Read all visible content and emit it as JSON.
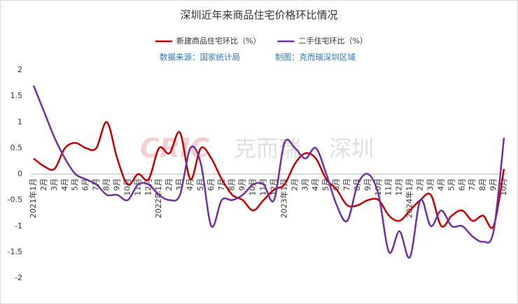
{
  "chart_data": {
    "type": "line",
    "title": "深圳近年来商品住宅价格环比情况",
    "source": "数据来源：国家统计局",
    "credit": "制图：克而瑞深圳区域",
    "watermark": [
      "CRIC",
      "克而瑞",
      "深圳"
    ],
    "categories": [
      "2021年1月",
      "2月",
      "3月",
      "4月",
      "5月",
      "6月",
      "7月",
      "8月",
      "9月",
      "10月",
      "11月",
      "12月",
      "2022年1月",
      "2月",
      "3月",
      "4月",
      "5月",
      "6月",
      "7月",
      "8月",
      "9月",
      "10月",
      "11月",
      "12月",
      "2023年1月",
      "2月",
      "3月",
      "4月",
      "5月",
      "6月",
      "7月",
      "8月",
      "9月",
      "10月",
      "11月",
      "12月",
      "2024年1月",
      "2月",
      "3月",
      "4月",
      "5月",
      "6月",
      "7月",
      "8月",
      "9月",
      "10月"
    ],
    "series": [
      {
        "name": "新建商品住宅环比（%）",
        "color": "#c00000",
        "values": [
          0.3,
          0.15,
          0.1,
          0.5,
          0.6,
          0.5,
          0.5,
          1.0,
          0.3,
          -0.2,
          0,
          -0.1,
          0.5,
          0.4,
          0.8,
          -0.1,
          0.5,
          0.3,
          -0.1,
          -0.4,
          -0.5,
          -0.7,
          -0.5,
          -0.3,
          -0.2,
          0.2,
          0.4,
          0.3,
          -0.1,
          -0.3,
          -0.6,
          -0.6,
          -0.5,
          -0.5,
          -0.8,
          -0.9,
          -0.7,
          -0.5,
          -0.4,
          -1.0,
          -0.8,
          -0.7,
          -0.9,
          -0.8,
          -1.0,
          0.1
        ]
      },
      {
        "name": "二手住宅环比（%）",
        "color": "#7030a0",
        "values": [
          1.7,
          1.2,
          0.7,
          0.3,
          0,
          -0.1,
          -0.2,
          -0.4,
          -0.4,
          -0.5,
          -0.2,
          -0.2,
          -0.4,
          -0.5,
          -0.4,
          0.5,
          0.2,
          -1.0,
          -0.5,
          -0.5,
          -0.4,
          -0.2,
          -0.2,
          -0.5,
          0.6,
          0.5,
          0.3,
          0.5,
          0,
          -0.6,
          -0.9,
          -0.2,
          0,
          -0.4,
          -1.5,
          -1.1,
          -1.6,
          -0.5,
          -1.0,
          -0.7,
          -1.0,
          -1.0,
          -1.2,
          -1.3,
          -1.1,
          0.7
        ]
      }
    ],
    "ylim": [
      -2,
      2
    ],
    "yticks": [
      2,
      1.5,
      1,
      0.5,
      0,
      -0.5,
      -1,
      -1.5,
      -2
    ],
    "legend": "top"
  }
}
